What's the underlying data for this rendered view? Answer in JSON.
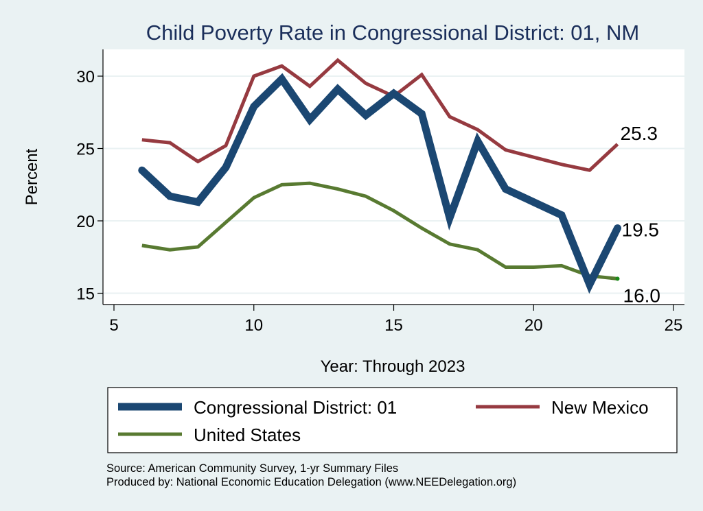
{
  "chart_data": {
    "type": "line",
    "title": "Child Poverty Rate in Congressional District:  01, NM",
    "xlabel": "Year: Through 2023",
    "ylabel": "Percent",
    "xlim": [
      5,
      25
    ],
    "ylim": [
      15,
      30
    ],
    "xticks": [
      5,
      10,
      15,
      20,
      25
    ],
    "yticks": [
      15,
      20,
      25,
      30
    ],
    "grid": true,
    "legend_position": "bottom",
    "x": [
      6,
      7,
      8,
      9,
      10,
      11,
      12,
      13,
      14,
      15,
      16,
      17,
      18,
      19,
      20,
      21,
      22,
      23
    ],
    "series": [
      {
        "name": "Congressional District:  01",
        "color": "#1b4772",
        "values": [
          23.5,
          21.7,
          21.3,
          23.7,
          27.9,
          29.8,
          27.0,
          29.1,
          27.3,
          28.8,
          27.4,
          20.2,
          25.5,
          22.2,
          21.3,
          20.4,
          15.6,
          19.5
        ],
        "end_label": "19.5"
      },
      {
        "name": "New Mexico",
        "color": "#963a40",
        "values": [
          25.6,
          25.4,
          24.1,
          25.2,
          30.0,
          30.7,
          29.3,
          31.1,
          29.5,
          28.6,
          30.1,
          27.2,
          26.3,
          24.9,
          24.4,
          23.9,
          23.5,
          25.3
        ],
        "end_label": "25.3"
      },
      {
        "name": "United States",
        "color": "#587a31",
        "values": [
          18.3,
          18.0,
          18.2,
          19.9,
          21.6,
          22.5,
          22.6,
          22.2,
          21.7,
          20.7,
          19.5,
          18.4,
          18.0,
          16.8,
          16.8,
          16.9,
          16.2,
          16.0
        ],
        "end_label": "16.0"
      }
    ],
    "notes": [
      "Source: American Community Survey, 1-yr Summary Files",
      "Produced by: National Economic Education Delegation (www.NEEDelegation.org)"
    ]
  }
}
